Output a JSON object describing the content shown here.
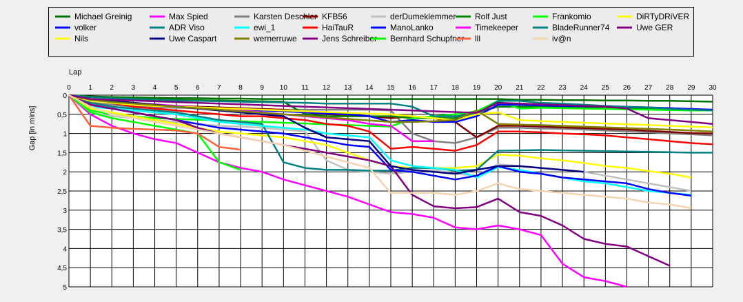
{
  "chart_data": {
    "type": "line",
    "xlabel": "Lap",
    "ylabel": "Gap [in mins]",
    "xlim": [
      0,
      30
    ],
    "ylim": [
      0,
      5
    ],
    "y_inverted": true,
    "grid": true,
    "legend_position": "top",
    "x_ticks": [
      0,
      1,
      2,
      3,
      4,
      5,
      6,
      7,
      8,
      9,
      10,
      11,
      12,
      13,
      14,
      15,
      16,
      17,
      18,
      19,
      20,
      21,
      22,
      23,
      24,
      25,
      26,
      27,
      28,
      29,
      30
    ],
    "y_ticks": [
      0,
      0.5,
      1,
      1.5,
      2,
      2.5,
      3,
      3.5,
      4,
      4.5,
      5
    ],
    "y_tick_labels": [
      "0",
      "0,5",
      "1",
      "1,5",
      "2",
      "2,5",
      "3",
      "3,5",
      "4",
      "4,5",
      "5"
    ],
    "series": [
      {
        "name": "Michael Greinig",
        "color": "#007000",
        "values": [
          0,
          0.03,
          0.05,
          0.06,
          0.07,
          0.08,
          0.08,
          0.09,
          0.09,
          0.1,
          0.1,
          0.1,
          0.1,
          0.1,
          0.1,
          0.1,
          0.1,
          0.1,
          0.1,
          0.1,
          0.1,
          0.12,
          0.12,
          0.13,
          0.13,
          0.14,
          0.14,
          0.15,
          0.15,
          0.16,
          0.17
        ]
      },
      {
        "name": "Max Spied",
        "color": "#ff00ff",
        "values": [
          0,
          0.5,
          0.8,
          1.0,
          1.15,
          1.25,
          1.5,
          1.75,
          1.9,
          2.0,
          2.2,
          2.35,
          2.5,
          2.65,
          2.85,
          3.05,
          3.1,
          3.2,
          3.45,
          3.5,
          3.4,
          3.5,
          3.65,
          4.4,
          4.75,
          4.85,
          5.0
        ]
      },
      {
        "name": "Karsten Deschler",
        "color": "#808080",
        "values": [
          0,
          0.2,
          0.25,
          0.3,
          0.32,
          0.33,
          0.34,
          0.35,
          0.36,
          0.37,
          0.38,
          0.38,
          0.38,
          0.38,
          0.38,
          0.4,
          1.0,
          1.2,
          1.25,
          1.1,
          0.85,
          0.85,
          0.87,
          0.88,
          0.9,
          0.92,
          0.95,
          0.97,
          1.0,
          1.02,
          1.05
        ]
      },
      {
        "name": "KFB56",
        "color": "#800000",
        "values": [
          0,
          0.1,
          0.15,
          0.2,
          0.25,
          0.28,
          0.3,
          0.32,
          0.34,
          0.36,
          0.38,
          0.45,
          0.5,
          0.52,
          0.55,
          0.6,
          0.55,
          0.6,
          0.7,
          1.1,
          0.8,
          0.8,
          0.82,
          0.84,
          0.86,
          0.88,
          0.9,
          0.93,
          0.96,
          0.99,
          1.0
        ]
      },
      {
        "name": "derDumeklemmer",
        "color": "#c0c0c0",
        "values": [
          0,
          0.45,
          0.55,
          0.6,
          0.65,
          0.7,
          0.75,
          0.8,
          0.82,
          0.85,
          0.9,
          0.95,
          1.7,
          1.95,
          2.0,
          2.05,
          2.0,
          1.95,
          2.05,
          2.1,
          1.8,
          1.85,
          1.9,
          1.95,
          2.0,
          2.1,
          2.2,
          2.3,
          2.4,
          2.5
        ]
      },
      {
        "name": "Rolf Just",
        "color": "#008000",
        "values": [
          0,
          0.05,
          0.07,
          0.09,
          0.1,
          0.12,
          0.13,
          0.14,
          0.15,
          0.16,
          0.17,
          0.5,
          0.55,
          0.55,
          0.55,
          0.55,
          0.6,
          0.6,
          0.6,
          0.45,
          0.3,
          0.3,
          0.31,
          0.32,
          0.33,
          0.34,
          0.35,
          0.36,
          0.38,
          0.39,
          0.4
        ]
      },
      {
        "name": "Frankomio",
        "color": "#00ff00",
        "values": [
          0,
          0.4,
          0.5,
          0.55,
          0.6,
          0.62,
          0.64,
          0.66,
          0.68,
          0.7,
          0.72,
          0.74,
          0.76,
          0.78,
          0.8,
          0.82,
          0.6,
          0.55,
          0.5,
          0.42,
          0.15,
          0.35,
          0.33,
          0.34,
          0.35,
          0.36,
          0.37,
          0.38,
          0.39,
          0.4,
          0.4
        ]
      },
      {
        "name": "DiRTyDRiVER",
        "color": "#ffff00",
        "values": [
          0,
          0.35,
          0.45,
          0.55,
          0.65,
          0.75,
          0.85,
          0.95,
          1.0,
          1.05,
          1.1,
          1.2,
          1.3,
          1.5,
          1.7,
          1.85,
          1.9,
          1.9,
          1.9,
          1.85,
          1.55,
          1.58,
          1.65,
          1.7,
          1.77,
          1.85,
          1.9,
          1.98,
          2.05,
          2.15
        ]
      },
      {
        "name": "volker",
        "color": "#0000ff",
        "values": [
          0,
          0.12,
          0.18,
          0.22,
          0.26,
          0.3,
          0.32,
          0.35,
          0.38,
          0.4,
          0.42,
          0.45,
          0.48,
          0.5,
          0.55,
          0.7,
          0.65,
          0.7,
          0.7,
          0.55,
          0.25,
          0.25,
          0.27,
          0.28,
          0.29,
          0.3,
          0.31,
          0.32,
          0.34,
          0.36,
          0.38
        ]
      },
      {
        "name": "ADR Viso",
        "color": "#008080",
        "values": [
          0,
          0.2,
          0.3,
          0.35,
          0.4,
          0.45,
          0.55,
          0.65,
          0.7,
          0.75,
          1.75,
          1.9,
          1.95,
          1.95,
          1.97,
          1.97,
          1.9,
          1.9,
          1.97,
          1.95,
          1.45,
          1.44,
          1.43,
          1.44,
          1.45,
          1.46,
          1.47,
          1.48,
          1.49,
          1.5,
          1.5
        ]
      },
      {
        "name": "ewi_1",
        "color": "#00ffff",
        "values": [
          0,
          0.3,
          0.35,
          0.4,
          0.45,
          0.5,
          0.6,
          0.7,
          0.75,
          0.8,
          0.85,
          0.9,
          1.0,
          1.05,
          1.1,
          1.7,
          1.85,
          1.9,
          1.95,
          2.15,
          1.88,
          1.95,
          2.05,
          2.15,
          2.25,
          2.3,
          2.4,
          2.5,
          2.55,
          2.6
        ]
      },
      {
        "name": "HaiTauR",
        "color": "#ff0000",
        "values": [
          0,
          0.15,
          0.2,
          0.3,
          0.35,
          0.4,
          0.45,
          0.5,
          0.55,
          0.55,
          0.6,
          0.65,
          0.75,
          0.8,
          0.95,
          1.4,
          1.35,
          1.4,
          1.45,
          1.3,
          0.95,
          0.95,
          0.97,
          1.0,
          1.02,
          1.05,
          1.1,
          1.15,
          1.2,
          1.25,
          1.28
        ]
      },
      {
        "name": "ManoLanko",
        "color": "#0000ff",
        "values": [
          0,
          0.25,
          0.35,
          0.45,
          0.55,
          0.65,
          0.75,
          0.85,
          0.9,
          0.95,
          1.0,
          1.1,
          1.2,
          1.3,
          1.35,
          1.95,
          2.0,
          2.1,
          2.2,
          2.1,
          1.85,
          2.0,
          2.05,
          2.15,
          2.2,
          2.25,
          2.3,
          2.45,
          2.55,
          2.62
        ]
      },
      {
        "name": "Timekeeper",
        "color": "#ff00ff",
        "values": [
          0,
          0.12,
          0.16,
          0.2,
          0.24,
          0.28,
          0.32,
          0.36,
          0.4,
          0.45,
          0.5,
          0.55,
          0.6,
          0.65,
          0.75,
          0.8,
          1.2,
          1.2
        ]
      },
      {
        "name": "BladeRunner74",
        "color": "#008080",
        "values": [
          0,
          0.05,
          0.08,
          0.1,
          0.12,
          0.14,
          0.15,
          0.16,
          0.17,
          0.18,
          0.19,
          0.2,
          0.22,
          0.22,
          0.22,
          0.22,
          0.3,
          0.55,
          0.55,
          0.5,
          0.15,
          0.15,
          0.2,
          0.22,
          0.25,
          0.28,
          0.3,
          0.32,
          0.36,
          0.38,
          0.4
        ]
      },
      {
        "name": "Uwe GER",
        "color": "#800080",
        "values": [
          0,
          0.25,
          0.35,
          0.45,
          0.55,
          0.65,
          0.85,
          1.0,
          1.1,
          1.2,
          1.3,
          1.4,
          1.5,
          1.6,
          1.7,
          1.85,
          2.6,
          2.9,
          2.95,
          2.92,
          2.7,
          3.05,
          3.15,
          3.4,
          3.75,
          3.88,
          3.95,
          4.2,
          4.45
        ]
      },
      {
        "name": "Nils",
        "color": "#ffff00",
        "values": [
          0,
          0.15,
          0.2,
          0.25,
          0.28,
          0.3,
          0.32,
          0.34,
          0.36,
          0.38,
          0.4,
          0.42,
          0.44,
          0.46,
          0.48,
          0.5,
          0.55,
          0.6,
          0.65,
          0.5,
          0.45,
          0.65,
          0.68,
          0.7,
          0.72,
          0.74,
          0.76,
          0.78,
          0.8,
          0.82,
          0.84
        ]
      },
      {
        "name": "Uwe Caspart",
        "color": "#000080",
        "values": [
          0,
          0.1,
          0.15,
          0.2,
          0.25,
          0.3,
          0.35,
          0.4,
          0.45,
          0.5,
          0.55,
          0.85,
          1.1,
          1.15,
          1.2,
          1.85,
          1.95,
          2.0,
          2.05,
          1.95,
          1.85,
          1.85,
          1.9,
          1.95,
          2.0
        ]
      },
      {
        "name": "wernerruwe",
        "color": "#808000",
        "values": [
          0,
          0.12,
          0.18,
          0.22,
          0.26,
          0.3,
          0.34,
          0.38,
          0.42,
          0.46,
          0.5,
          0.54,
          0.58,
          0.62,
          0.66,
          0.7,
          0.7,
          0.68,
          0.65,
          0.4,
          0.75,
          0.77,
          0.78,
          0.8,
          0.82,
          0.84,
          0.86,
          0.88,
          0.9,
          0.92,
          0.95
        ]
      },
      {
        "name": "Jens Schreiber",
        "color": "#800080",
        "values": [
          0,
          0.1,
          0.12,
          0.14,
          0.16,
          0.18,
          0.2,
          0.22,
          0.24,
          0.26,
          0.28,
          0.3,
          0.32,
          0.34,
          0.36,
          0.38,
          0.4,
          0.42,
          0.44,
          0.46,
          0.2,
          0.22,
          0.24,
          0.26,
          0.28,
          0.3,
          0.35,
          0.6,
          0.65,
          0.7,
          0.75
        ]
      },
      {
        "name": "Bernhard Schupfner",
        "color": "#00ff00",
        "values": [
          0,
          0.45,
          0.6,
          0.7,
          0.8,
          0.9,
          1.0,
          1.75,
          1.95
        ]
      },
      {
        "name": "lll",
        "color": "#ff6040",
        "values": [
          0,
          0.8,
          0.85,
          0.88,
          0.9,
          0.92,
          1.0,
          1.35,
          1.42
        ]
      },
      {
        "name": "iv@n",
        "color": "#f5d5b0",
        "values": [
          0,
          0.3,
          0.5,
          0.6,
          0.7,
          0.8,
          0.9,
          1.0,
          1.1,
          1.2,
          1.3,
          1.45,
          1.6,
          1.75,
          1.9,
          2.55,
          2.55,
          2.55,
          2.6,
          2.5,
          2.3,
          2.45,
          2.5,
          2.55,
          2.6,
          2.65,
          2.7,
          2.8,
          2.85,
          2.95
        ]
      }
    ]
  }
}
